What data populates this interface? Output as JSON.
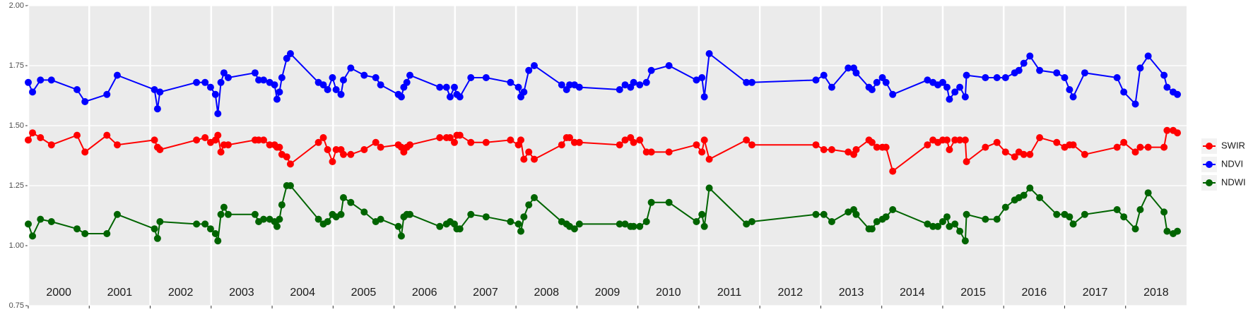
{
  "chart_data": {
    "type": "line",
    "xlim": [
      2000,
      2019
    ],
    "ylim": [
      0.75,
      2.0
    ],
    "yticks": [
      {
        "value": 0.75,
        "label": "0.75"
      },
      {
        "value": 1.0,
        "label": "1.00"
      },
      {
        "value": 1.25,
        "label": "1.25"
      },
      {
        "value": 1.5,
        "label": "1.50"
      },
      {
        "value": 1.75,
        "label": "1.75"
      },
      {
        "value": 2.0,
        "label": "2.00"
      }
    ],
    "xticks": [
      2000,
      2001,
      2002,
      2003,
      2004,
      2005,
      2006,
      2007,
      2008,
      2009,
      2010,
      2011,
      2012,
      2013,
      2014,
      2015,
      2016,
      2017,
      2018
    ],
    "year_labels": [
      "2000",
      "2001",
      "2002",
      "2003",
      "2004",
      "2005",
      "2006",
      "2007",
      "2008",
      "2009",
      "2010",
      "2011",
      "2012",
      "2013",
      "2014",
      "2015",
      "2016",
      "2017",
      "2018"
    ],
    "grid": true,
    "legend": "right",
    "x": [
      2000.0,
      2000.07,
      2000.2,
      2000.38,
      2000.8,
      2000.93,
      2001.29,
      2001.46,
      2002.07,
      2002.12,
      2002.16,
      2002.76,
      2002.9,
      2002.99,
      2003.07,
      2003.11,
      2003.16,
      2003.21,
      2003.28,
      2003.72,
      2003.78,
      2003.86,
      2003.96,
      2004.04,
      2004.08,
      2004.12,
      2004.16,
      2004.24,
      2004.3,
      2004.76,
      2004.84,
      2004.91,
      2004.99,
      2005.05,
      2005.13,
      2005.17,
      2005.29,
      2005.51,
      2005.7,
      2005.78,
      2006.07,
      2006.12,
      2006.16,
      2006.21,
      2006.26,
      2006.75,
      2006.86,
      2006.92,
      2006.99,
      2007.03,
      2007.08,
      2007.26,
      2007.51,
      2007.91,
      2008.04,
      2008.08,
      2008.13,
      2008.21,
      2008.3,
      2008.75,
      2008.83,
      2008.88,
      2008.96,
      2009.04,
      2009.7,
      2009.79,
      2009.88,
      2009.93,
      2010.03,
      2010.14,
      2010.22,
      2010.51,
      2010.96,
      2011.05,
      2011.09,
      2011.17,
      2011.78,
      2011.87,
      2012.92,
      2013.05,
      2013.18,
      2013.45,
      2013.54,
      2013.58,
      2013.79,
      2013.84,
      2013.92,
      2014.01,
      2014.07,
      2014.18,
      2014.75,
      2014.84,
      2014.92,
      2015.0,
      2015.07,
      2015.11,
      2015.2,
      2015.28,
      2015.37,
      2015.39,
      2015.7,
      2015.89,
      2016.03,
      2016.18,
      2016.25,
      2016.33,
      2016.43,
      2016.59,
      2016.87,
      2017.0,
      2017.08,
      2017.14,
      2017.33,
      2017.86,
      2017.97,
      2018.16,
      2018.24,
      2018.37,
      2018.63,
      2018.68,
      2018.78,
      2018.85
    ],
    "series": [
      {
        "name": "SWIR",
        "color": "#ff0000",
        "values": [
          1.44,
          1.47,
          1.45,
          1.42,
          1.46,
          1.39,
          1.46,
          1.42,
          1.44,
          1.41,
          1.4,
          1.44,
          1.45,
          1.43,
          1.44,
          1.46,
          1.39,
          1.42,
          1.42,
          1.44,
          1.44,
          1.44,
          1.42,
          1.42,
          1.41,
          1.41,
          1.38,
          1.37,
          1.34,
          1.43,
          1.45,
          1.4,
          1.35,
          1.4,
          1.4,
          1.38,
          1.38,
          1.4,
          1.43,
          1.41,
          1.42,
          1.41,
          1.39,
          1.41,
          1.42,
          1.45,
          1.45,
          1.45,
          1.43,
          1.46,
          1.46,
          1.43,
          1.43,
          1.44,
          1.42,
          1.44,
          1.36,
          1.39,
          1.36,
          1.42,
          1.45,
          1.45,
          1.43,
          1.43,
          1.42,
          1.44,
          1.45,
          1.43,
          1.44,
          1.39,
          1.39,
          1.39,
          1.42,
          1.39,
          1.44,
          1.36,
          1.44,
          1.42,
          1.42,
          1.4,
          1.4,
          1.39,
          1.38,
          1.4,
          1.44,
          1.43,
          1.41,
          1.41,
          1.41,
          1.31,
          1.42,
          1.44,
          1.43,
          1.44,
          1.44,
          1.4,
          1.44,
          1.44,
          1.44,
          1.35,
          1.41,
          1.43,
          1.39,
          1.37,
          1.39,
          1.38,
          1.38,
          1.45,
          1.43,
          1.41,
          1.42,
          1.42,
          1.38,
          1.41,
          1.43,
          1.39,
          1.41,
          1.41,
          1.41,
          1.48,
          1.48,
          1.47
        ]
      },
      {
        "name": "NDVI",
        "color": "#0000ff",
        "values": [
          1.68,
          1.64,
          1.69,
          1.69,
          1.65,
          1.6,
          1.63,
          1.71,
          1.65,
          1.57,
          1.64,
          1.68,
          1.68,
          1.66,
          1.63,
          1.55,
          1.68,
          1.72,
          1.7,
          1.72,
          1.69,
          1.69,
          1.68,
          1.67,
          1.61,
          1.64,
          1.7,
          1.78,
          1.8,
          1.68,
          1.67,
          1.65,
          1.7,
          1.65,
          1.63,
          1.69,
          1.74,
          1.71,
          1.7,
          1.67,
          1.63,
          1.62,
          1.66,
          1.68,
          1.71,
          1.66,
          1.66,
          1.62,
          1.66,
          1.63,
          1.62,
          1.7,
          1.7,
          1.68,
          1.66,
          1.62,
          1.64,
          1.73,
          1.75,
          1.67,
          1.65,
          1.67,
          1.67,
          1.66,
          1.65,
          1.67,
          1.66,
          1.68,
          1.67,
          1.68,
          1.73,
          1.75,
          1.69,
          1.7,
          1.62,
          1.8,
          1.68,
          1.68,
          1.69,
          1.71,
          1.66,
          1.74,
          1.74,
          1.72,
          1.66,
          1.65,
          1.68,
          1.7,
          1.68,
          1.63,
          1.69,
          1.68,
          1.67,
          1.68,
          1.66,
          1.61,
          1.64,
          1.66,
          1.62,
          1.71,
          1.7,
          1.7,
          1.7,
          1.72,
          1.73,
          1.76,
          1.79,
          1.73,
          1.72,
          1.7,
          1.65,
          1.62,
          1.72,
          1.7,
          1.64,
          1.59,
          1.74,
          1.79,
          1.71,
          1.66,
          1.64,
          1.63
        ]
      },
      {
        "name": "NDWI",
        "color": "#006400",
        "values": [
          1.09,
          1.04,
          1.11,
          1.1,
          1.07,
          1.05,
          1.05,
          1.13,
          1.07,
          1.03,
          1.1,
          1.09,
          1.09,
          1.07,
          1.05,
          1.02,
          1.13,
          1.16,
          1.13,
          1.13,
          1.1,
          1.11,
          1.11,
          1.1,
          1.08,
          1.11,
          1.17,
          1.25,
          1.25,
          1.11,
          1.09,
          1.1,
          1.13,
          1.12,
          1.13,
          1.2,
          1.18,
          1.14,
          1.1,
          1.11,
          1.08,
          1.04,
          1.12,
          1.13,
          1.13,
          1.08,
          1.09,
          1.1,
          1.09,
          1.07,
          1.07,
          1.13,
          1.12,
          1.1,
          1.09,
          1.06,
          1.12,
          1.17,
          1.2,
          1.1,
          1.09,
          1.08,
          1.07,
          1.09,
          1.09,
          1.09,
          1.08,
          1.08,
          1.08,
          1.1,
          1.18,
          1.18,
          1.1,
          1.13,
          1.08,
          1.24,
          1.09,
          1.1,
          1.13,
          1.13,
          1.1,
          1.14,
          1.15,
          1.13,
          1.07,
          1.07,
          1.1,
          1.11,
          1.12,
          1.15,
          1.09,
          1.08,
          1.08,
          1.1,
          1.12,
          1.08,
          1.09,
          1.06,
          1.02,
          1.13,
          1.11,
          1.11,
          1.16,
          1.19,
          1.2,
          1.21,
          1.24,
          1.2,
          1.13,
          1.13,
          1.12,
          1.09,
          1.13,
          1.15,
          1.12,
          1.07,
          1.15,
          1.22,
          1.14,
          1.06,
          1.05,
          1.06
        ]
      }
    ]
  }
}
